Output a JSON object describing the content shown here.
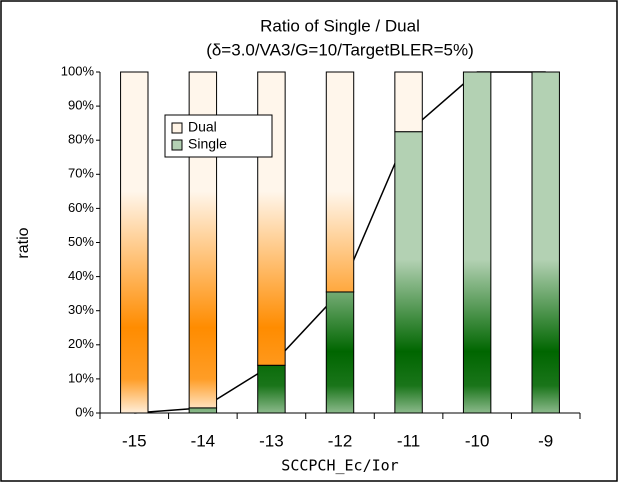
{
  "chart_data": {
    "type": "stacked_bar",
    "title": "Ratio of Single / Dual",
    "subtitle": "(δ=3.0/VA3/G=10/TargetBLER=5%)",
    "x_label": "SCCPCH_Ec/Ior",
    "y_label": "ratio",
    "categories": [
      "-15",
      "-14",
      "-13",
      "-12",
      "-11",
      "-10",
      "-9"
    ],
    "series": [
      {
        "name": "Single",
        "color": "#006600",
        "values": [
          0,
          1.5,
          14,
          35.5,
          82.5,
          100,
          100
        ]
      },
      {
        "name": "Dual",
        "color": "#ff8c00",
        "values": [
          100,
          98.5,
          86,
          64.5,
          17.5,
          0,
          0
        ]
      }
    ],
    "ylim": [
      0,
      100
    ],
    "yticks": [
      {
        "value": 0,
        "label": "0%"
      },
      {
        "value": 10,
        "label": "10%"
      },
      {
        "value": 20,
        "label": "20%"
      },
      {
        "value": 30,
        "label": "30%"
      },
      {
        "value": 40,
        "label": "40%"
      },
      {
        "value": 50,
        "label": "50%"
      },
      {
        "value": 60,
        "label": "60%"
      },
      {
        "value": 70,
        "label": "70%"
      },
      {
        "value": 80,
        "label": "80%"
      },
      {
        "value": 90,
        "label": "90%"
      },
      {
        "value": 100,
        "label": "100%"
      }
    ],
    "legend": "upper-left"
  }
}
